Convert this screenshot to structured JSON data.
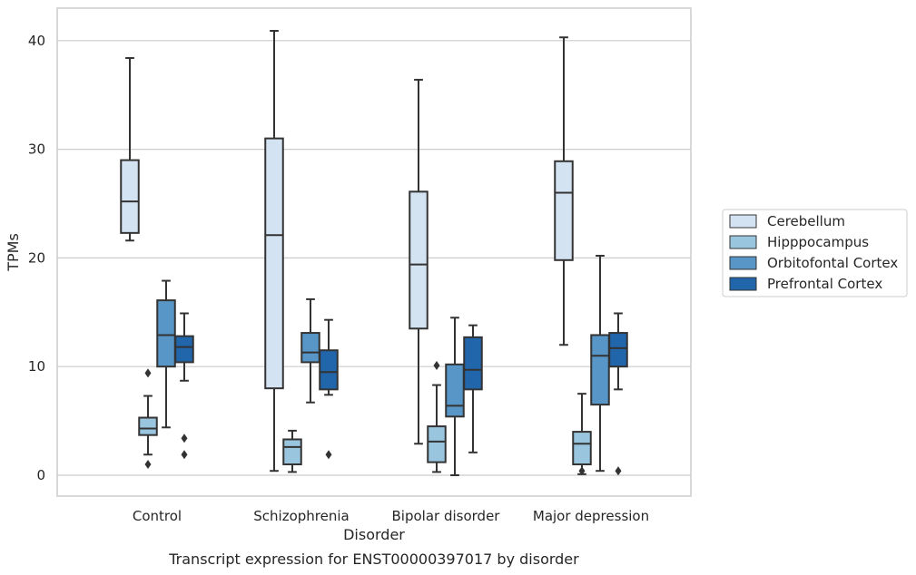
{
  "chart_data": {
    "type": "box",
    "title": "",
    "caption": "Transcript expression for ENST00000397017 by disorder",
    "xlabel": "Disorder",
    "ylabel": "TPMs",
    "ylim": [
      -1.8,
      43
    ],
    "yticks": [
      0,
      10,
      20,
      30,
      40
    ],
    "grid": "horizontal",
    "legend_position": "right",
    "categories": [
      "Control",
      "Schizophrenia",
      "Bipolar disorder",
      "Major depression"
    ],
    "series": [
      {
        "name": "Cerebellum",
        "color": "#d4e3f2",
        "boxes": [
          {
            "whislo": 21.6,
            "q1": 22.3,
            "med": 25.2,
            "q3": 29.0,
            "whishi": 38.4,
            "fliers": []
          },
          {
            "whislo": 0.4,
            "q1": 8.0,
            "med": 22.1,
            "q3": 31.0,
            "whishi": 40.9,
            "fliers": []
          },
          {
            "whislo": 2.9,
            "q1": 13.5,
            "med": 19.4,
            "q3": 26.1,
            "whishi": 36.4,
            "fliers": []
          },
          {
            "whislo": 12.0,
            "q1": 19.8,
            "med": 26.0,
            "q3": 28.9,
            "whishi": 40.3,
            "fliers": []
          }
        ]
      },
      {
        "name": "Hipppocampus",
        "color": "#9ac5df",
        "boxes": [
          {
            "whislo": 1.9,
            "q1": 3.7,
            "med": 4.3,
            "q3": 5.3,
            "whishi": 7.3,
            "fliers": [
              9.4,
              1.0
            ]
          },
          {
            "whislo": 0.3,
            "q1": 1.0,
            "med": 2.6,
            "q3": 3.3,
            "whishi": 4.1,
            "fliers": []
          },
          {
            "whislo": 0.3,
            "q1": 1.2,
            "med": 3.1,
            "q3": 4.5,
            "whishi": 8.3,
            "fliers": [
              10.1
            ]
          },
          {
            "whislo": 0.1,
            "q1": 1.0,
            "med": 2.9,
            "q3": 4.0,
            "whishi": 7.5,
            "fliers": [
              0.4
            ]
          }
        ]
      },
      {
        "name": "Orbitofontal Cortex",
        "color": "#5796c6",
        "boxes": [
          {
            "whislo": 4.4,
            "q1": 10.0,
            "med": 12.9,
            "q3": 16.1,
            "whishi": 17.9,
            "fliers": []
          },
          {
            "whislo": 6.7,
            "q1": 10.4,
            "med": 11.3,
            "q3": 13.1,
            "whishi": 16.2,
            "fliers": []
          },
          {
            "whislo": 0.0,
            "q1": 5.4,
            "med": 6.4,
            "q3": 10.2,
            "whishi": 14.5,
            "fliers": []
          },
          {
            "whislo": 0.4,
            "q1": 6.5,
            "med": 11.0,
            "q3": 12.9,
            "whishi": 20.2,
            "fliers": []
          }
        ]
      },
      {
        "name": "Prefrontal Cortex",
        "color": "#2165ab",
        "boxes": [
          {
            "whislo": 8.7,
            "q1": 10.4,
            "med": 11.8,
            "q3": 12.8,
            "whishi": 14.9,
            "fliers": [
              3.4,
              1.9
            ]
          },
          {
            "whislo": 7.4,
            "q1": 7.9,
            "med": 9.5,
            "q3": 11.5,
            "whishi": 14.3,
            "fliers": [
              1.9
            ]
          },
          {
            "whislo": 2.1,
            "q1": 7.9,
            "med": 9.7,
            "q3": 12.7,
            "whishi": 13.8,
            "fliers": []
          },
          {
            "whislo": 7.9,
            "q1": 10.0,
            "med": 11.7,
            "q3": 13.1,
            "whishi": 14.9,
            "fliers": [
              0.4
            ]
          }
        ]
      }
    ]
  }
}
